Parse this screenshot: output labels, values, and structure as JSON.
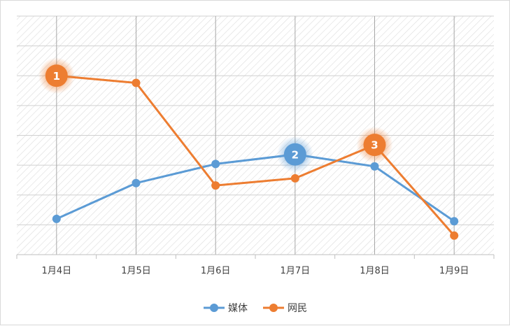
{
  "chart_data": {
    "type": "line",
    "categories": [
      "1月4日",
      "1月5日",
      "1月6日",
      "1月7日",
      "1月8日",
      "1月9日"
    ],
    "ylim": [
      0,
      10
    ],
    "grid": true,
    "legend_position": "bottom",
    "series": [
      {
        "name": "媒体",
        "color": "#5b9bd5",
        "values": [
          1.5,
          3.0,
          3.8,
          4.2,
          3.7,
          1.4
        ]
      },
      {
        "name": "网民",
        "color": "#ed7d31",
        "values": [
          7.5,
          7.2,
          2.9,
          3.2,
          4.6,
          0.8
        ]
      }
    ],
    "annotations": [
      {
        "label": "1",
        "series": 1,
        "index": 0,
        "color": "#ed7d31"
      },
      {
        "label": "2",
        "series": 0,
        "index": 3,
        "color": "#5b9bd5"
      },
      {
        "label": "3",
        "series": 1,
        "index": 4,
        "color": "#ed7d31"
      }
    ]
  }
}
